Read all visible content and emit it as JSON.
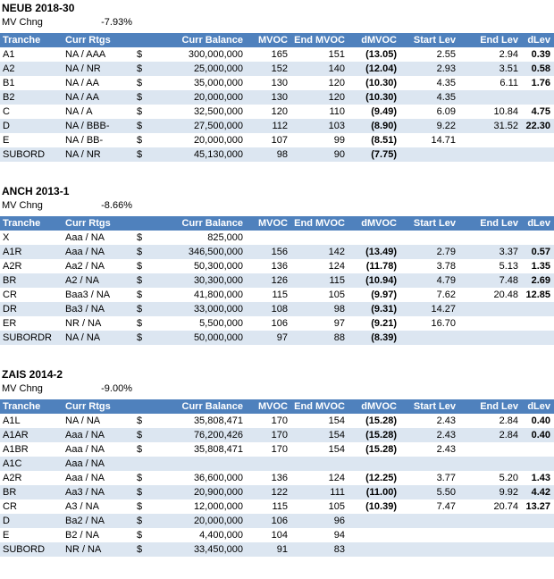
{
  "labels": {
    "mv_chng": "MV Chng"
  },
  "colors": {
    "header_bg": "#4F81BD",
    "header_text": "#FFFFFF",
    "stripe_bg": "#DCE6F1",
    "text": "#000000"
  },
  "columns": [
    "Tranche",
    "Curr Rtgs",
    "Curr Balance",
    "MVOC",
    "End MVOC",
    "dMVOC",
    "Start Lev",
    "End Lev",
    "dLev"
  ],
  "tables": [
    {
      "title": "NEUB 2018-30",
      "mv_chng": "-7.93%",
      "rows": [
        {
          "tranche": "A1",
          "rtgs": "NA / AAA",
          "cur": "$",
          "balance": "300,000,000",
          "mvoc": "165",
          "end_mvoc": "151",
          "dmvoc": "(13.05)",
          "start_lev": "2.55",
          "end_lev": "2.94",
          "dlev": "0.39"
        },
        {
          "tranche": "A2",
          "rtgs": "NA / NR",
          "cur": "$",
          "balance": "25,000,000",
          "mvoc": "152",
          "end_mvoc": "140",
          "dmvoc": "(12.04)",
          "start_lev": "2.93",
          "end_lev": "3.51",
          "dlev": "0.58"
        },
        {
          "tranche": "B1",
          "rtgs": "NA / AA",
          "cur": "$",
          "balance": "35,000,000",
          "mvoc": "130",
          "end_mvoc": "120",
          "dmvoc": "(10.30)",
          "start_lev": "4.35",
          "end_lev": "6.11",
          "dlev": "1.76"
        },
        {
          "tranche": "B2",
          "rtgs": "NA / AA",
          "cur": "$",
          "balance": "20,000,000",
          "mvoc": "130",
          "end_mvoc": "120",
          "dmvoc": "(10.30)",
          "start_lev": "4.35",
          "end_lev": "",
          "dlev": ""
        },
        {
          "tranche": "C",
          "rtgs": "NA / A",
          "cur": "$",
          "balance": "32,500,000",
          "mvoc": "120",
          "end_mvoc": "110",
          "dmvoc": "(9.49)",
          "start_lev": "6.09",
          "end_lev": "10.84",
          "dlev": "4.75"
        },
        {
          "tranche": "D",
          "rtgs": "NA / BBB-",
          "cur": "$",
          "balance": "27,500,000",
          "mvoc": "112",
          "end_mvoc": "103",
          "dmvoc": "(8.90)",
          "start_lev": "9.22",
          "end_lev": "31.52",
          "dlev": "22.30"
        },
        {
          "tranche": "E",
          "rtgs": "NA / BB-",
          "cur": "$",
          "balance": "20,000,000",
          "mvoc": "107",
          "end_mvoc": "99",
          "dmvoc": "(8.51)",
          "start_lev": "14.71",
          "end_lev": "",
          "dlev": ""
        },
        {
          "tranche": "SUBORD",
          "rtgs": "NA / NR",
          "cur": "$",
          "balance": "45,130,000",
          "mvoc": "98",
          "end_mvoc": "90",
          "dmvoc": "(7.75)",
          "start_lev": "",
          "end_lev": "",
          "dlev": ""
        }
      ]
    },
    {
      "title": "ANCH 2013-1",
      "mv_chng": "-8.66%",
      "rows": [
        {
          "tranche": "X",
          "rtgs": "Aaa / NA",
          "cur": "$",
          "balance": "825,000",
          "mvoc": "",
          "end_mvoc": "",
          "dmvoc": "",
          "start_lev": "",
          "end_lev": "",
          "dlev": ""
        },
        {
          "tranche": "A1R",
          "rtgs": "Aaa / NA",
          "cur": "$",
          "balance": "346,500,000",
          "mvoc": "156",
          "end_mvoc": "142",
          "dmvoc": "(13.49)",
          "start_lev": "2.79",
          "end_lev": "3.37",
          "dlev": "0.57"
        },
        {
          "tranche": "A2R",
          "rtgs": "Aa2 / NA",
          "cur": "$",
          "balance": "50,300,000",
          "mvoc": "136",
          "end_mvoc": "124",
          "dmvoc": "(11.78)",
          "start_lev": "3.78",
          "end_lev": "5.13",
          "dlev": "1.35"
        },
        {
          "tranche": "BR",
          "rtgs": "A2 / NA",
          "cur": "$",
          "balance": "30,300,000",
          "mvoc": "126",
          "end_mvoc": "115",
          "dmvoc": "(10.94)",
          "start_lev": "4.79",
          "end_lev": "7.48",
          "dlev": "2.69"
        },
        {
          "tranche": "CR",
          "rtgs": "Baa3 / NA",
          "cur": "$",
          "balance": "41,800,000",
          "mvoc": "115",
          "end_mvoc": "105",
          "dmvoc": "(9.97)",
          "start_lev": "7.62",
          "end_lev": "20.48",
          "dlev": "12.85"
        },
        {
          "tranche": "DR",
          "rtgs": "Ba3 / NA",
          "cur": "$",
          "balance": "33,000,000",
          "mvoc": "108",
          "end_mvoc": "98",
          "dmvoc": "(9.31)",
          "start_lev": "14.27",
          "end_lev": "",
          "dlev": ""
        },
        {
          "tranche": "ER",
          "rtgs": "NR / NA",
          "cur": "$",
          "balance": "5,500,000",
          "mvoc": "106",
          "end_mvoc": "97",
          "dmvoc": "(9.21)",
          "start_lev": "16.70",
          "end_lev": "",
          "dlev": ""
        },
        {
          "tranche": "SUBORDR",
          "rtgs": "NA / NA",
          "cur": "$",
          "balance": "50,000,000",
          "mvoc": "97",
          "end_mvoc": "88",
          "dmvoc": "(8.39)",
          "start_lev": "",
          "end_lev": "",
          "dlev": ""
        }
      ]
    },
    {
      "title": "ZAIS 2014-2",
      "mv_chng": "-9.00%",
      "rows": [
        {
          "tranche": "A1L",
          "rtgs": "NA / NA",
          "cur": "$",
          "balance": "35,808,471",
          "mvoc": "170",
          "end_mvoc": "154",
          "dmvoc": "(15.28)",
          "start_lev": "2.43",
          "end_lev": "2.84",
          "dlev": "0.40"
        },
        {
          "tranche": "A1AR",
          "rtgs": "Aaa / NA",
          "cur": "$",
          "balance": "76,200,426",
          "mvoc": "170",
          "end_mvoc": "154",
          "dmvoc": "(15.28)",
          "start_lev": "2.43",
          "end_lev": "2.84",
          "dlev": "0.40"
        },
        {
          "tranche": "A1BR",
          "rtgs": "Aaa / NA",
          "cur": "$",
          "balance": "35,808,471",
          "mvoc": "170",
          "end_mvoc": "154",
          "dmvoc": "(15.28)",
          "start_lev": "2.43",
          "end_lev": "",
          "dlev": ""
        },
        {
          "tranche": "A1C",
          "rtgs": "Aaa / NA",
          "cur": "",
          "balance": "",
          "mvoc": "",
          "end_mvoc": "",
          "dmvoc": "",
          "start_lev": "",
          "end_lev": "",
          "dlev": ""
        },
        {
          "tranche": "A2R",
          "rtgs": "Aaa / NA",
          "cur": "$",
          "balance": "36,600,000",
          "mvoc": "136",
          "end_mvoc": "124",
          "dmvoc": "(12.25)",
          "start_lev": "3.77",
          "end_lev": "5.20",
          "dlev": "1.43"
        },
        {
          "tranche": "BR",
          "rtgs": "Aa3 / NA",
          "cur": "$",
          "balance": "20,900,000",
          "mvoc": "122",
          "end_mvoc": "111",
          "dmvoc": "(11.00)",
          "start_lev": "5.50",
          "end_lev": "9.92",
          "dlev": "4.42"
        },
        {
          "tranche": "CR",
          "rtgs": "A3 / NA",
          "cur": "$",
          "balance": "12,000,000",
          "mvoc": "115",
          "end_mvoc": "105",
          "dmvoc": "(10.39)",
          "start_lev": "7.47",
          "end_lev": "20.74",
          "dlev": "13.27"
        },
        {
          "tranche": "D",
          "rtgs": "Ba2 / NA",
          "cur": "$",
          "balance": "20,000,000",
          "mvoc": "106",
          "end_mvoc": "96",
          "dmvoc": "",
          "start_lev": "",
          "end_lev": "",
          "dlev": ""
        },
        {
          "tranche": "E",
          "rtgs": "B2 / NA",
          "cur": "$",
          "balance": "4,400,000",
          "mvoc": "104",
          "end_mvoc": "94",
          "dmvoc": "",
          "start_lev": "",
          "end_lev": "",
          "dlev": ""
        },
        {
          "tranche": "SUBORD",
          "rtgs": "NR / NA",
          "cur": "$",
          "balance": "33,450,000",
          "mvoc": "91",
          "end_mvoc": "83",
          "dmvoc": "",
          "start_lev": "",
          "end_lev": "",
          "dlev": ""
        }
      ]
    }
  ]
}
